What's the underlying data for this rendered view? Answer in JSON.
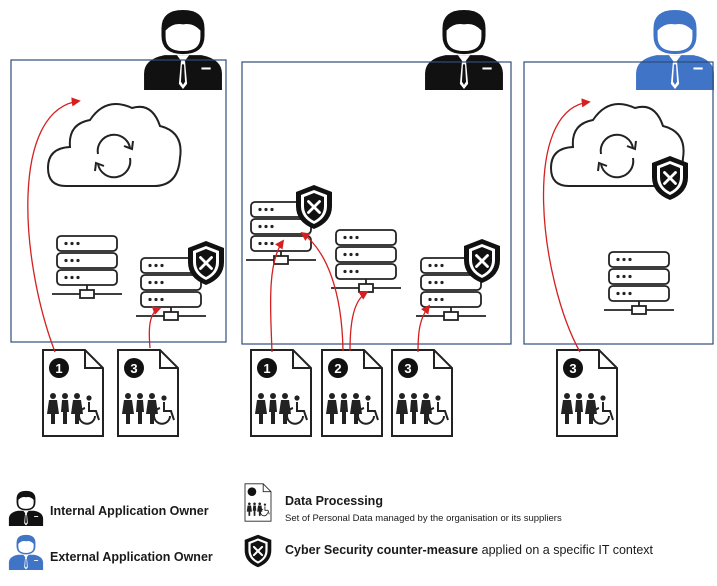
{
  "colors": {
    "internal_owner": "#111111",
    "external_owner": "#3f74c7",
    "box_border": "#2e4d7a",
    "arrow": "#d42020",
    "icon_stroke": "#222222"
  },
  "contexts": [
    {
      "owner": "internal",
      "documents": [
        "1",
        "3"
      ]
    },
    {
      "owner": "internal",
      "documents": [
        "1",
        "2",
        "3"
      ]
    },
    {
      "owner": "external",
      "documents": [
        "3"
      ]
    }
  ],
  "legend": {
    "internal_owner_label": "Internal Application Owner",
    "external_owner_label": "External Application Owner",
    "data_processing_title": "Data Processing",
    "data_processing_desc": "Set of Personal Data managed by the organisation or its suppliers",
    "cyber_title": "Cyber Security counter-measure",
    "cyber_desc": " applied on a specific IT context"
  }
}
